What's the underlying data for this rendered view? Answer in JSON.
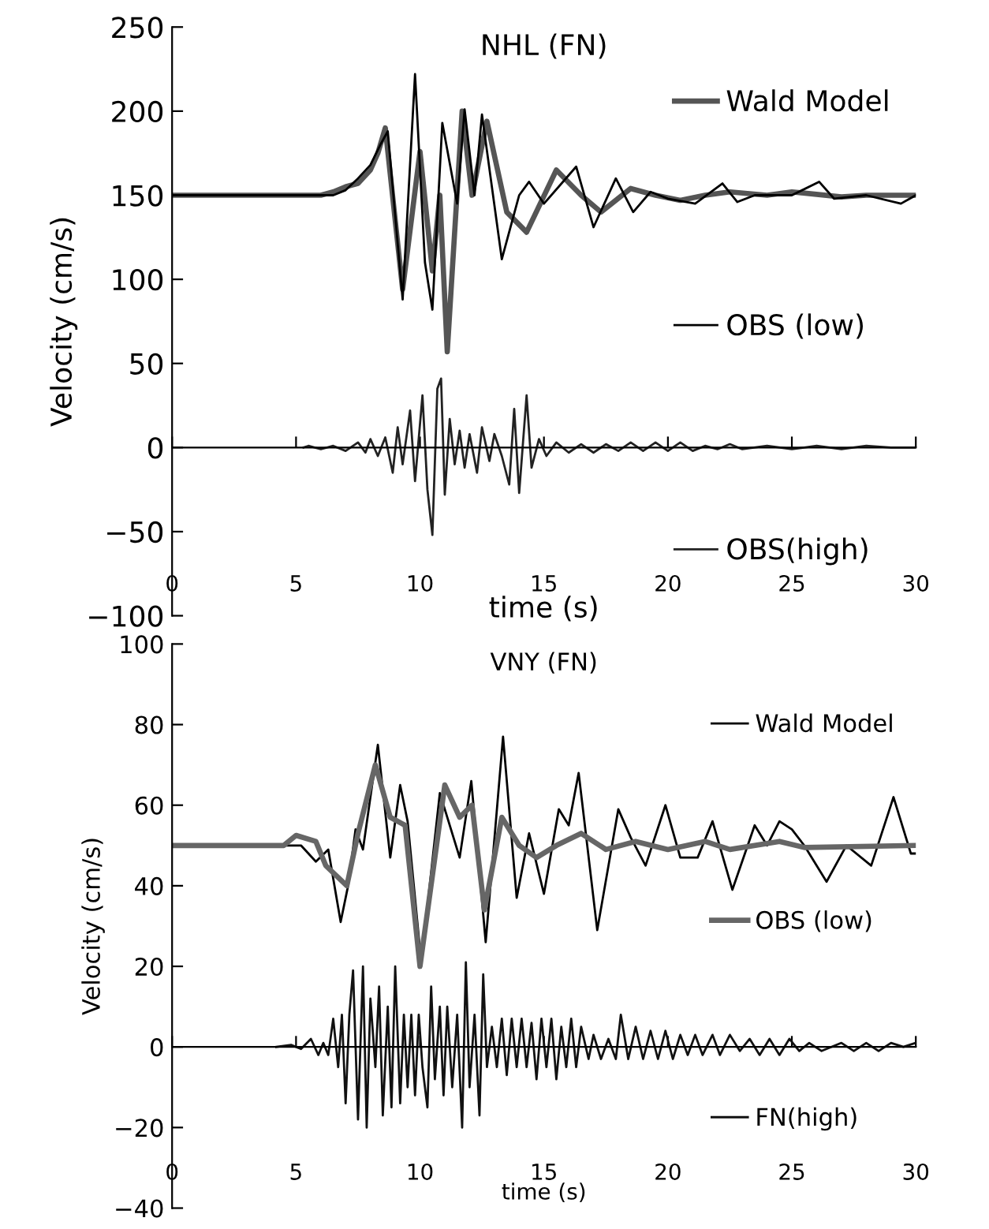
{
  "chart_data": [
    {
      "type": "line",
      "title": "NHL (FN)",
      "xlabel": "time (s)",
      "ylabel": "Velocity (cm/s)",
      "xlim": [
        0,
        30
      ],
      "ylim": [
        -100,
        250
      ],
      "xticks": [
        0,
        5,
        10,
        15,
        20,
        25,
        30
      ],
      "yticks": [
        -100,
        -50,
        0,
        50,
        100,
        150,
        200,
        250
      ],
      "legend": "right",
      "series": [
        {
          "name": "Wald Model",
          "color": "#555555",
          "x": [
            0,
            3,
            6,
            6.5,
            7,
            7.5,
            8,
            8.3,
            8.6,
            9.3,
            10.0,
            10.5,
            10.8,
            11.1,
            11.7,
            12.1,
            12.7,
            13.5,
            14.3,
            15.5,
            16.5,
            17.3,
            18.5,
            19.5,
            20.5,
            21.5,
            22.5,
            24,
            25,
            27,
            28,
            30
          ],
          "values": [
            150,
            150,
            150,
            152,
            155,
            157,
            165,
            175,
            190,
            94,
            176,
            105,
            150,
            57,
            200,
            150,
            194,
            140,
            128,
            165,
            150,
            140,
            154,
            150,
            147,
            150,
            152,
            150,
            152,
            149,
            150,
            150
          ]
        },
        {
          "name": "OBS (low)",
          "color": "#000000",
          "x": [
            0,
            3,
            6,
            6.5,
            7,
            7.5,
            8,
            8.4,
            8.7,
            9.3,
            9.8,
            10.2,
            10.5,
            10.9,
            11.5,
            11.8,
            12.2,
            12.5,
            13.3,
            14.0,
            14.4,
            15.0,
            16.3,
            17.0,
            17.9,
            18.6,
            19.3,
            20,
            21.1,
            22.2,
            22.8,
            23.5,
            25,
            26.1,
            26.7,
            28,
            29.4,
            30
          ],
          "values": [
            150,
            150,
            150,
            150,
            153,
            160,
            168,
            180,
            188,
            88,
            222,
            110,
            82,
            193,
            145,
            201,
            150,
            198,
            112,
            150,
            158,
            145,
            167,
            131,
            160,
            140,
            152,
            148,
            145,
            157,
            146,
            150,
            150,
            158,
            148,
            150,
            145,
            150
          ]
        },
        {
          "name": "OBS(high)",
          "color": "#222222",
          "x": [
            5.3,
            5.5,
            6,
            6.5,
            7,
            7.5,
            7.8,
            8,
            8.3,
            8.6,
            8.9,
            9.1,
            9.3,
            9.6,
            9.8,
            10.1,
            10.3,
            10.5,
            10.7,
            10.85,
            11.0,
            11.2,
            11.4,
            11.6,
            11.8,
            12.0,
            12.3,
            12.5,
            12.8,
            13.0,
            13.3,
            13.6,
            13.8,
            14.0,
            14.3,
            14.5,
            14.8,
            15.1,
            15.5,
            16,
            16.5,
            17,
            17.5,
            18,
            18.5,
            19,
            19.5,
            20,
            20.5,
            21,
            21.5,
            22,
            22.5,
            23,
            24,
            25,
            26,
            27,
            28,
            29,
            30
          ],
          "values": [
            0,
            1,
            -1,
            1,
            -2,
            3,
            -3,
            5,
            -5,
            6,
            -15,
            12,
            -10,
            22,
            -20,
            31,
            -25,
            -52,
            35,
            41,
            -28,
            17,
            -10,
            10,
            -12,
            8,
            -15,
            12,
            -8,
            8,
            -5,
            -22,
            23,
            -27,
            31,
            -12,
            5,
            -5,
            3,
            -3,
            2,
            -3,
            2,
            -2,
            3,
            -2,
            3,
            -2,
            3,
            -2,
            1,
            -1,
            2,
            -1,
            1,
            -1,
            1,
            -1,
            1,
            0,
            0
          ]
        }
      ]
    },
    {
      "type": "line",
      "title": "VNY (FN)",
      "xlabel": "time (s)",
      "ylabel": "Velocity (cm/s)",
      "xlim": [
        0,
        30
      ],
      "ylim": [
        -40,
        100
      ],
      "xticks": [
        0,
        5,
        10,
        15,
        20,
        25,
        30
      ],
      "yticks": [
        -40,
        -20,
        0,
        20,
        40,
        60,
        80,
        100
      ],
      "legend": "right",
      "series": [
        {
          "name": "Wald Model",
          "color": "#000000",
          "x": [
            0,
            3,
            5.2,
            5.8,
            6.3,
            6.8,
            7.1,
            7.4,
            7.7,
            8.3,
            8.8,
            9.2,
            9.5,
            10.05,
            10.8,
            11.6,
            12.07,
            12.65,
            13.35,
            13.9,
            14.4,
            15.0,
            15.6,
            16.0,
            16.4,
            17.15,
            18.0,
            18.5,
            19.1,
            19.9,
            20.5,
            21.2,
            21.8,
            22.6,
            23.5,
            24.0,
            24.5,
            25.0,
            25.5,
            26.4,
            27.2,
            28.2,
            29.1,
            29.8,
            30
          ],
          "values": [
            50,
            50,
            50,
            46,
            49,
            31,
            40,
            54,
            49,
            75,
            47,
            65,
            56,
            21,
            63,
            47,
            66,
            26,
            77,
            37,
            53,
            38,
            59,
            55,
            68,
            29,
            59,
            52,
            45,
            60,
            47,
            47,
            56,
            39,
            55,
            50,
            56,
            54,
            50,
            41,
            50,
            45,
            62,
            48,
            48
          ]
        },
        {
          "name": "OBS (low)",
          "color": "#666666",
          "x": [
            0,
            3,
            4.5,
            5.0,
            5.8,
            6.2,
            7.05,
            7.5,
            8.2,
            8.8,
            9.4,
            10.0,
            11.0,
            11.6,
            12.1,
            12.6,
            13.3,
            14.0,
            14.7,
            15.5,
            16.5,
            17.5,
            18.7,
            20,
            21.5,
            22.5,
            24.5,
            25.5,
            30
          ],
          "values": [
            50,
            50,
            50,
            52.5,
            51,
            45,
            40,
            53,
            70,
            57,
            55,
            20,
            65,
            57,
            60,
            34,
            57,
            50,
            47,
            50,
            53,
            49,
            51,
            49,
            51,
            49,
            51,
            49.5,
            50
          ]
        },
        {
          "name": "FN(high)",
          "color": "#111111",
          "x": [
            4.2,
            4.8,
            5.2,
            5.6,
            5.9,
            6.1,
            6.3,
            6.5,
            6.7,
            6.85,
            7.0,
            7.15,
            7.3,
            7.5,
            7.7,
            7.85,
            8.0,
            8.2,
            8.35,
            8.5,
            8.7,
            8.85,
            9.0,
            9.2,
            9.35,
            9.5,
            9.65,
            9.8,
            9.95,
            10.1,
            10.3,
            10.45,
            10.6,
            10.8,
            10.95,
            11.1,
            11.3,
            11.5,
            11.7,
            11.85,
            12.0,
            12.2,
            12.4,
            12.55,
            12.7,
            12.9,
            13.1,
            13.3,
            13.5,
            13.7,
            13.9,
            14.1,
            14.3,
            14.5,
            14.7,
            14.9,
            15.1,
            15.3,
            15.5,
            15.7,
            15.9,
            16.1,
            16.3,
            16.5,
            16.8,
            17.0,
            17.3,
            17.6,
            17.9,
            18.1,
            18.4,
            18.7,
            19.0,
            19.3,
            19.6,
            19.9,
            20.2,
            20.5,
            20.8,
            21.1,
            21.4,
            21.8,
            22.1,
            22.5,
            22.9,
            23.3,
            23.7,
            24.1,
            24.5,
            24.9,
            25.3,
            25.7,
            26.2,
            27,
            27.5,
            28,
            28.5,
            29,
            29.5,
            30
          ],
          "values": [
            0,
            0.5,
            -0.5,
            2,
            -2,
            1,
            -2,
            7,
            -5,
            8,
            -14,
            8,
            19,
            -18,
            20,
            -20,
            12,
            -5,
            15,
            -17,
            10,
            -15,
            20,
            -14,
            8,
            -10,
            8,
            -12,
            8,
            -5,
            -15,
            15,
            -8,
            10,
            -12,
            10,
            -10,
            8,
            -20,
            21,
            -10,
            8,
            -17,
            18,
            -5,
            5,
            -5,
            7,
            -7,
            7,
            -5,
            7,
            -5,
            6,
            -8,
            7,
            -5,
            7,
            -8,
            5,
            -5,
            7,
            -5,
            5,
            -3,
            3,
            -3,
            2,
            -3,
            8,
            -3,
            5,
            -3,
            4,
            -3,
            4,
            -3,
            3,
            -2,
            3,
            -2,
            3,
            -2,
            3,
            -1,
            2,
            -2,
            2,
            -2,
            2,
            -1,
            1,
            -1,
            1,
            -1,
            1,
            -1,
            1,
            0,
            1
          ]
        }
      ]
    }
  ]
}
